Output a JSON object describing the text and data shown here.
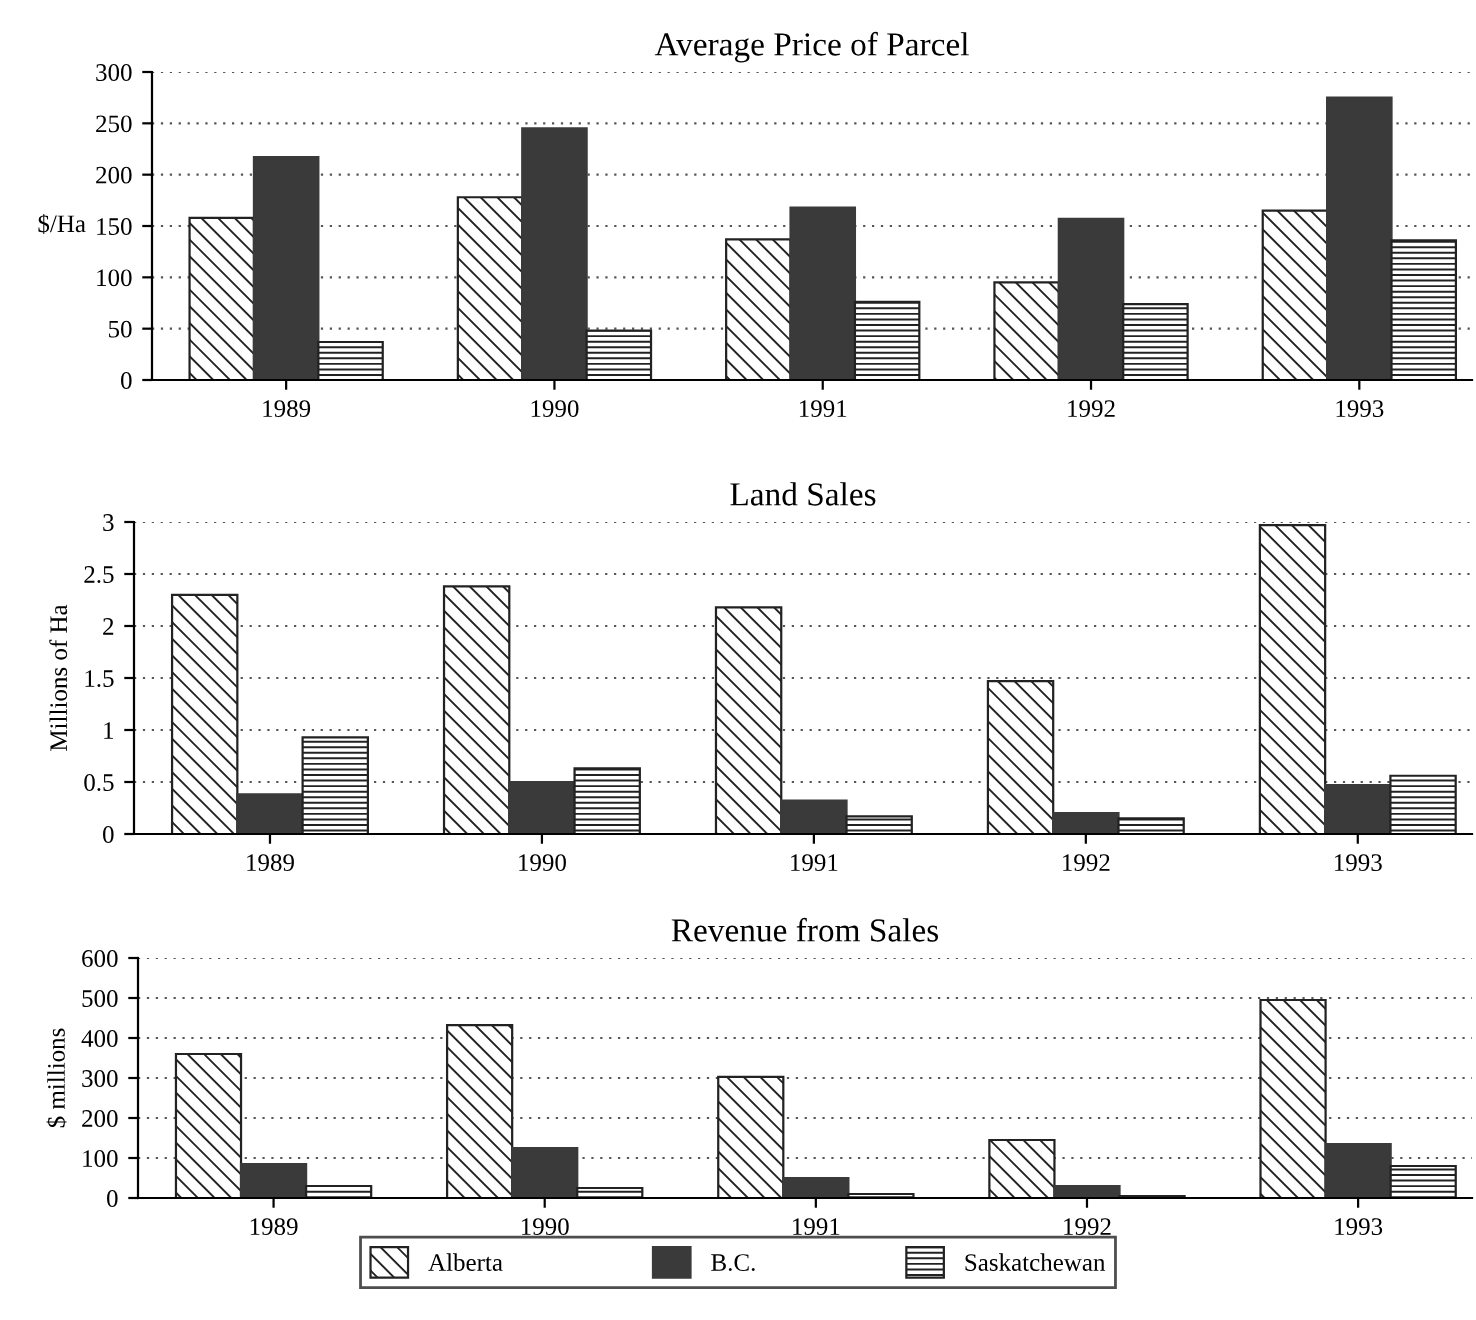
{
  "chart_data": [
    {
      "type": "bar",
      "title": "Average Price of Parcel",
      "ylabel": "$/Ha",
      "categories": [
        "1989",
        "1990",
        "1991",
        "1992",
        "1993"
      ],
      "series": [
        {
          "color": "#222222",
          "values": [
            158,
            178,
            137,
            95,
            165
          ]
        },
        {
          "color": "#3a3a3a",
          "values": [
            217,
            245,
            168,
            157,
            275
          ]
        },
        {
          "color": "#222222",
          "values": [
            37,
            48,
            76,
            74,
            136
          ]
        }
      ],
      "ylim": [
        0,
        300
      ],
      "yticks": [
        0,
        50,
        100,
        150,
        200,
        250,
        300
      ],
      "grid": "y"
    },
    {
      "type": "bar",
      "title": "Land Sales",
      "ylabel": "Millions of Ha",
      "categories": [
        "1989",
        "1990",
        "1991",
        "1992",
        "1993"
      ],
      "series": [
        {
          "color": "#222222",
          "values": [
            2.3,
            2.38,
            2.18,
            1.47,
            2.97
          ]
        },
        {
          "color": "#3a3a3a",
          "values": [
            0.38,
            0.5,
            0.32,
            0.2,
            0.47
          ]
        },
        {
          "color": "#222222",
          "values": [
            0.93,
            0.63,
            0.17,
            0.15,
            0.56
          ]
        }
      ],
      "ylim": [
        0,
        3
      ],
      "yticks": [
        0,
        0.5,
        1,
        1.5,
        2,
        2.5,
        3
      ],
      "grid": "y"
    },
    {
      "type": "bar",
      "title": "Revenue from Sales",
      "ylabel": "$ millions",
      "categories": [
        "1989",
        "1990",
        "1991",
        "1992",
        "1993"
      ],
      "series": [
        {
          "name": "Alberta",
          "color": "#222222",
          "values": [
            360,
            432,
            303,
            145,
            495
          ]
        },
        {
          "name": "B.C.",
          "color": "#3a3a3a",
          "values": [
            85,
            125,
            50,
            30,
            135
          ]
        },
        {
          "name": "Saskatchewan",
          "color": "#222222",
          "values": [
            30,
            25,
            10,
            5,
            80
          ]
        }
      ],
      "ylim": [
        0,
        600
      ],
      "yticks": [
        0,
        100,
        200,
        300,
        400,
        500,
        600
      ],
      "grid": "y",
      "legend": "bottom"
    }
  ]
}
